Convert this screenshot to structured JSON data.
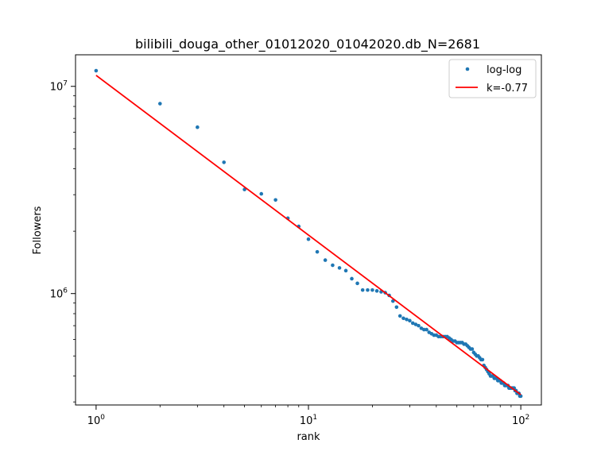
{
  "chart_data": {
    "type": "scatter",
    "title": "bilibili_douga_other_01012020_01042020.db_N=2681",
    "xlabel": "rank",
    "ylabel": "Followers",
    "xscale": "log",
    "yscale": "log",
    "xlim": [
      0.8,
      125
    ],
    "ylim": [
      290000,
      14200000
    ],
    "grid": false,
    "legend_position": "top-right",
    "x_ticks": [
      {
        "value": 1,
        "base": "10",
        "exp": "0"
      },
      {
        "value": 10,
        "base": "10",
        "exp": "1"
      },
      {
        "value": 100,
        "base": "10",
        "exp": "2"
      }
    ],
    "y_ticks": [
      {
        "value": 1000000,
        "base": "10",
        "exp": "6"
      },
      {
        "value": 10000000,
        "base": "10",
        "exp": "7"
      }
    ],
    "series": [
      {
        "name": "log-log",
        "kind": "points",
        "color": "#1f77b4",
        "x": [
          1,
          2,
          3,
          4,
          5,
          6,
          7,
          8,
          9,
          10,
          11,
          12,
          13,
          14,
          15,
          16,
          17,
          18,
          19,
          20,
          21,
          22,
          23,
          24,
          25,
          26,
          27,
          28,
          29,
          30,
          31,
          32,
          33,
          34,
          35,
          36,
          37,
          38,
          39,
          40,
          41,
          42,
          43,
          44,
          45,
          46,
          47,
          48,
          49,
          50,
          51,
          52,
          53,
          54,
          55,
          56,
          57,
          58,
          59,
          60,
          61,
          62,
          63,
          64,
          65,
          66,
          67,
          68,
          69,
          70,
          71,
          72,
          73,
          74,
          75,
          76,
          77,
          78,
          79,
          80,
          81,
          82,
          83,
          84,
          85,
          86,
          87,
          88,
          89,
          90,
          91,
          92,
          93,
          94,
          95,
          96,
          97,
          98,
          99,
          100
        ],
        "y": [
          11900000,
          8250000,
          6350000,
          4300000,
          3180000,
          3030000,
          2830000,
          2310000,
          2110000,
          1830000,
          1590000,
          1450000,
          1370000,
          1330000,
          1290000,
          1180000,
          1120000,
          1040000,
          1040000,
          1040000,
          1030000,
          1020000,
          1010000,
          980000,
          920000,
          860000,
          780000,
          760000,
          750000,
          740000,
          720000,
          710000,
          700000,
          680000,
          670000,
          670000,
          650000,
          640000,
          630000,
          630000,
          620000,
          620000,
          620000,
          620000,
          620000,
          610000,
          600000,
          590000,
          590000,
          580000,
          580000,
          580000,
          580000,
          570000,
          570000,
          560000,
          550000,
          540000,
          540000,
          520000,
          510000,
          500000,
          500000,
          490000,
          480000,
          480000,
          450000,
          440000,
          430000,
          420000,
          410000,
          400000,
          400000,
          400000,
          390000,
          390000,
          390000,
          380000,
          380000,
          380000,
          370000,
          370000,
          370000,
          360000,
          360000,
          360000,
          360000,
          350000,
          350000,
          350000,
          350000,
          350000,
          350000,
          340000,
          340000,
          330000,
          330000,
          330000,
          320000,
          320000
        ]
      },
      {
        "name": "k=-0.77",
        "kind": "line",
        "color": "#ff0000",
        "x": [
          1,
          100
        ],
        "y": [
          11300000,
          325000
        ]
      }
    ]
  }
}
